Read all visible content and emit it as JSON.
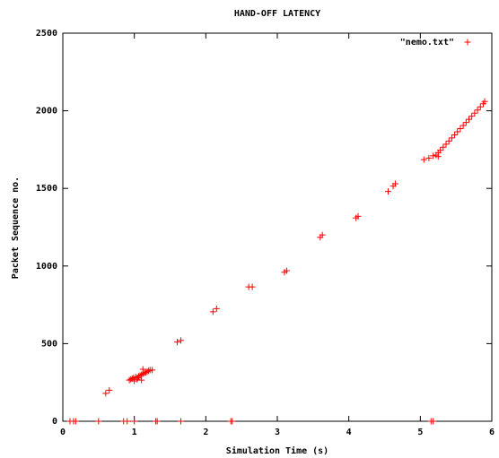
{
  "chart_data": {
    "type": "scatter",
    "title": "HAND-OFF LATENCY",
    "x_label": "Simulation Time (s)",
    "y_label": "Packet Sequence no.",
    "xlim": [
      0,
      6
    ],
    "ylim": [
      0,
      2500
    ],
    "xticks": [
      0,
      1,
      2,
      3,
      4,
      5,
      6
    ],
    "yticks": [
      0,
      500,
      1000,
      1500,
      2000,
      2500
    ],
    "legend": "top-right",
    "series": [
      {
        "name": "\"nemo.txt\"",
        "color": "#ff0000",
        "x": [
          0.1,
          0.15,
          0.18,
          0.5,
          0.85,
          0.9,
          1.0,
          1.3,
          1.32,
          1.65,
          2.35,
          2.37,
          5.15,
          5.18,
          0.6,
          0.65,
          0.93,
          0.95,
          0.97,
          0.99,
          1.0,
          1.02,
          1.04,
          1.06,
          1.08,
          1.1,
          1.1,
          1.12,
          1.14,
          1.16,
          1.18,
          1.2,
          1.22,
          1.25,
          1.12,
          1.05,
          1.6,
          1.65,
          2.1,
          2.15,
          2.6,
          2.65,
          3.1,
          3.13,
          3.6,
          3.63,
          4.1,
          4.13,
          4.55,
          4.62,
          4.65,
          5.05,
          5.12,
          5.18,
          5.22,
          5.25,
          5.28,
          5.32,
          5.36,
          5.4,
          5.44,
          5.48,
          5.52,
          5.56,
          5.6,
          5.64,
          5.68,
          5.72,
          5.76,
          5.8,
          5.84,
          5.88,
          5.9,
          5.25
        ],
        "values": [
          0,
          0,
          0,
          0,
          0,
          0,
          0,
          0,
          0,
          0,
          0,
          0,
          0,
          0,
          180,
          200,
          265,
          270,
          275,
          280,
          260,
          285,
          270,
          290,
          295,
          300,
          265,
          305,
          310,
          315,
          320,
          325,
          330,
          330,
          335,
          280,
          510,
          520,
          705,
          725,
          865,
          865,
          960,
          970,
          1185,
          1200,
          1310,
          1320,
          1480,
          1515,
          1530,
          1685,
          1695,
          1710,
          1715,
          1730,
          1745,
          1765,
          1785,
          1805,
          1825,
          1845,
          1865,
          1885,
          1905,
          1925,
          1945,
          1965,
          1985,
          2005,
          2025,
          2045,
          2060,
          1705
        ]
      }
    ]
  }
}
